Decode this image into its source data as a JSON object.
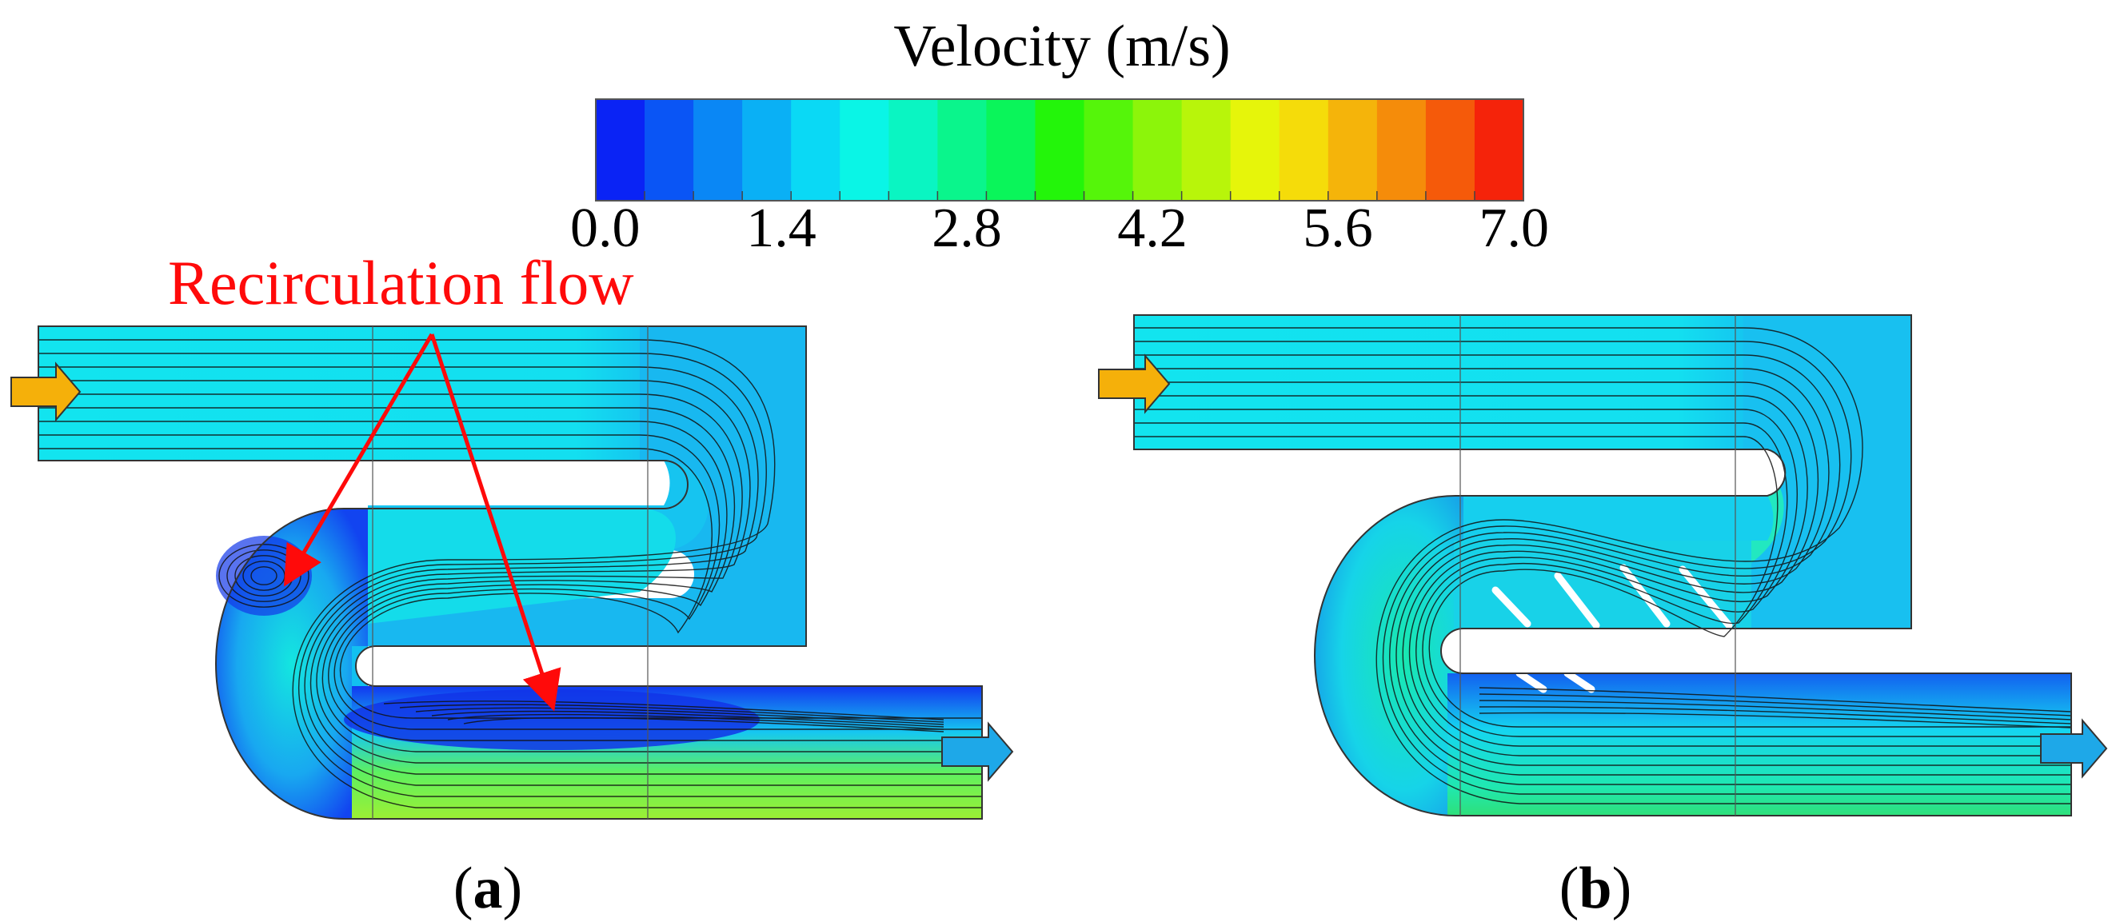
{
  "legend": {
    "title": "Velocity (m/s)",
    "ticks": [
      "0.0",
      "1.4",
      "2.8",
      "4.2",
      "5.6",
      "7.0"
    ],
    "colors": [
      "#0a23f5",
      "#0a55f5",
      "#0a87f5",
      "#0ab0f5",
      "#0ad9f5",
      "#0af5e6",
      "#0af5c2",
      "#0af58c",
      "#0af55a",
      "#23f50a",
      "#55f50a",
      "#8cf50a",
      "#b8f50a",
      "#e6f50a",
      "#f5dc0a",
      "#f5b40a",
      "#f58c0a",
      "#f55a0a",
      "#f5230a"
    ]
  },
  "annotation": {
    "text": "Recirculation flow",
    "color": "#ff0a0a"
  },
  "panels": [
    {
      "id": "a",
      "label_open": "(",
      "label_letter": "a",
      "label_close": ")"
    },
    {
      "id": "b",
      "label_open": "(",
      "label_letter": "b",
      "label_close": ")"
    }
  ],
  "arrow_colors": {
    "inlet": "#f5b00a",
    "outlet": "#1ea8e8"
  }
}
